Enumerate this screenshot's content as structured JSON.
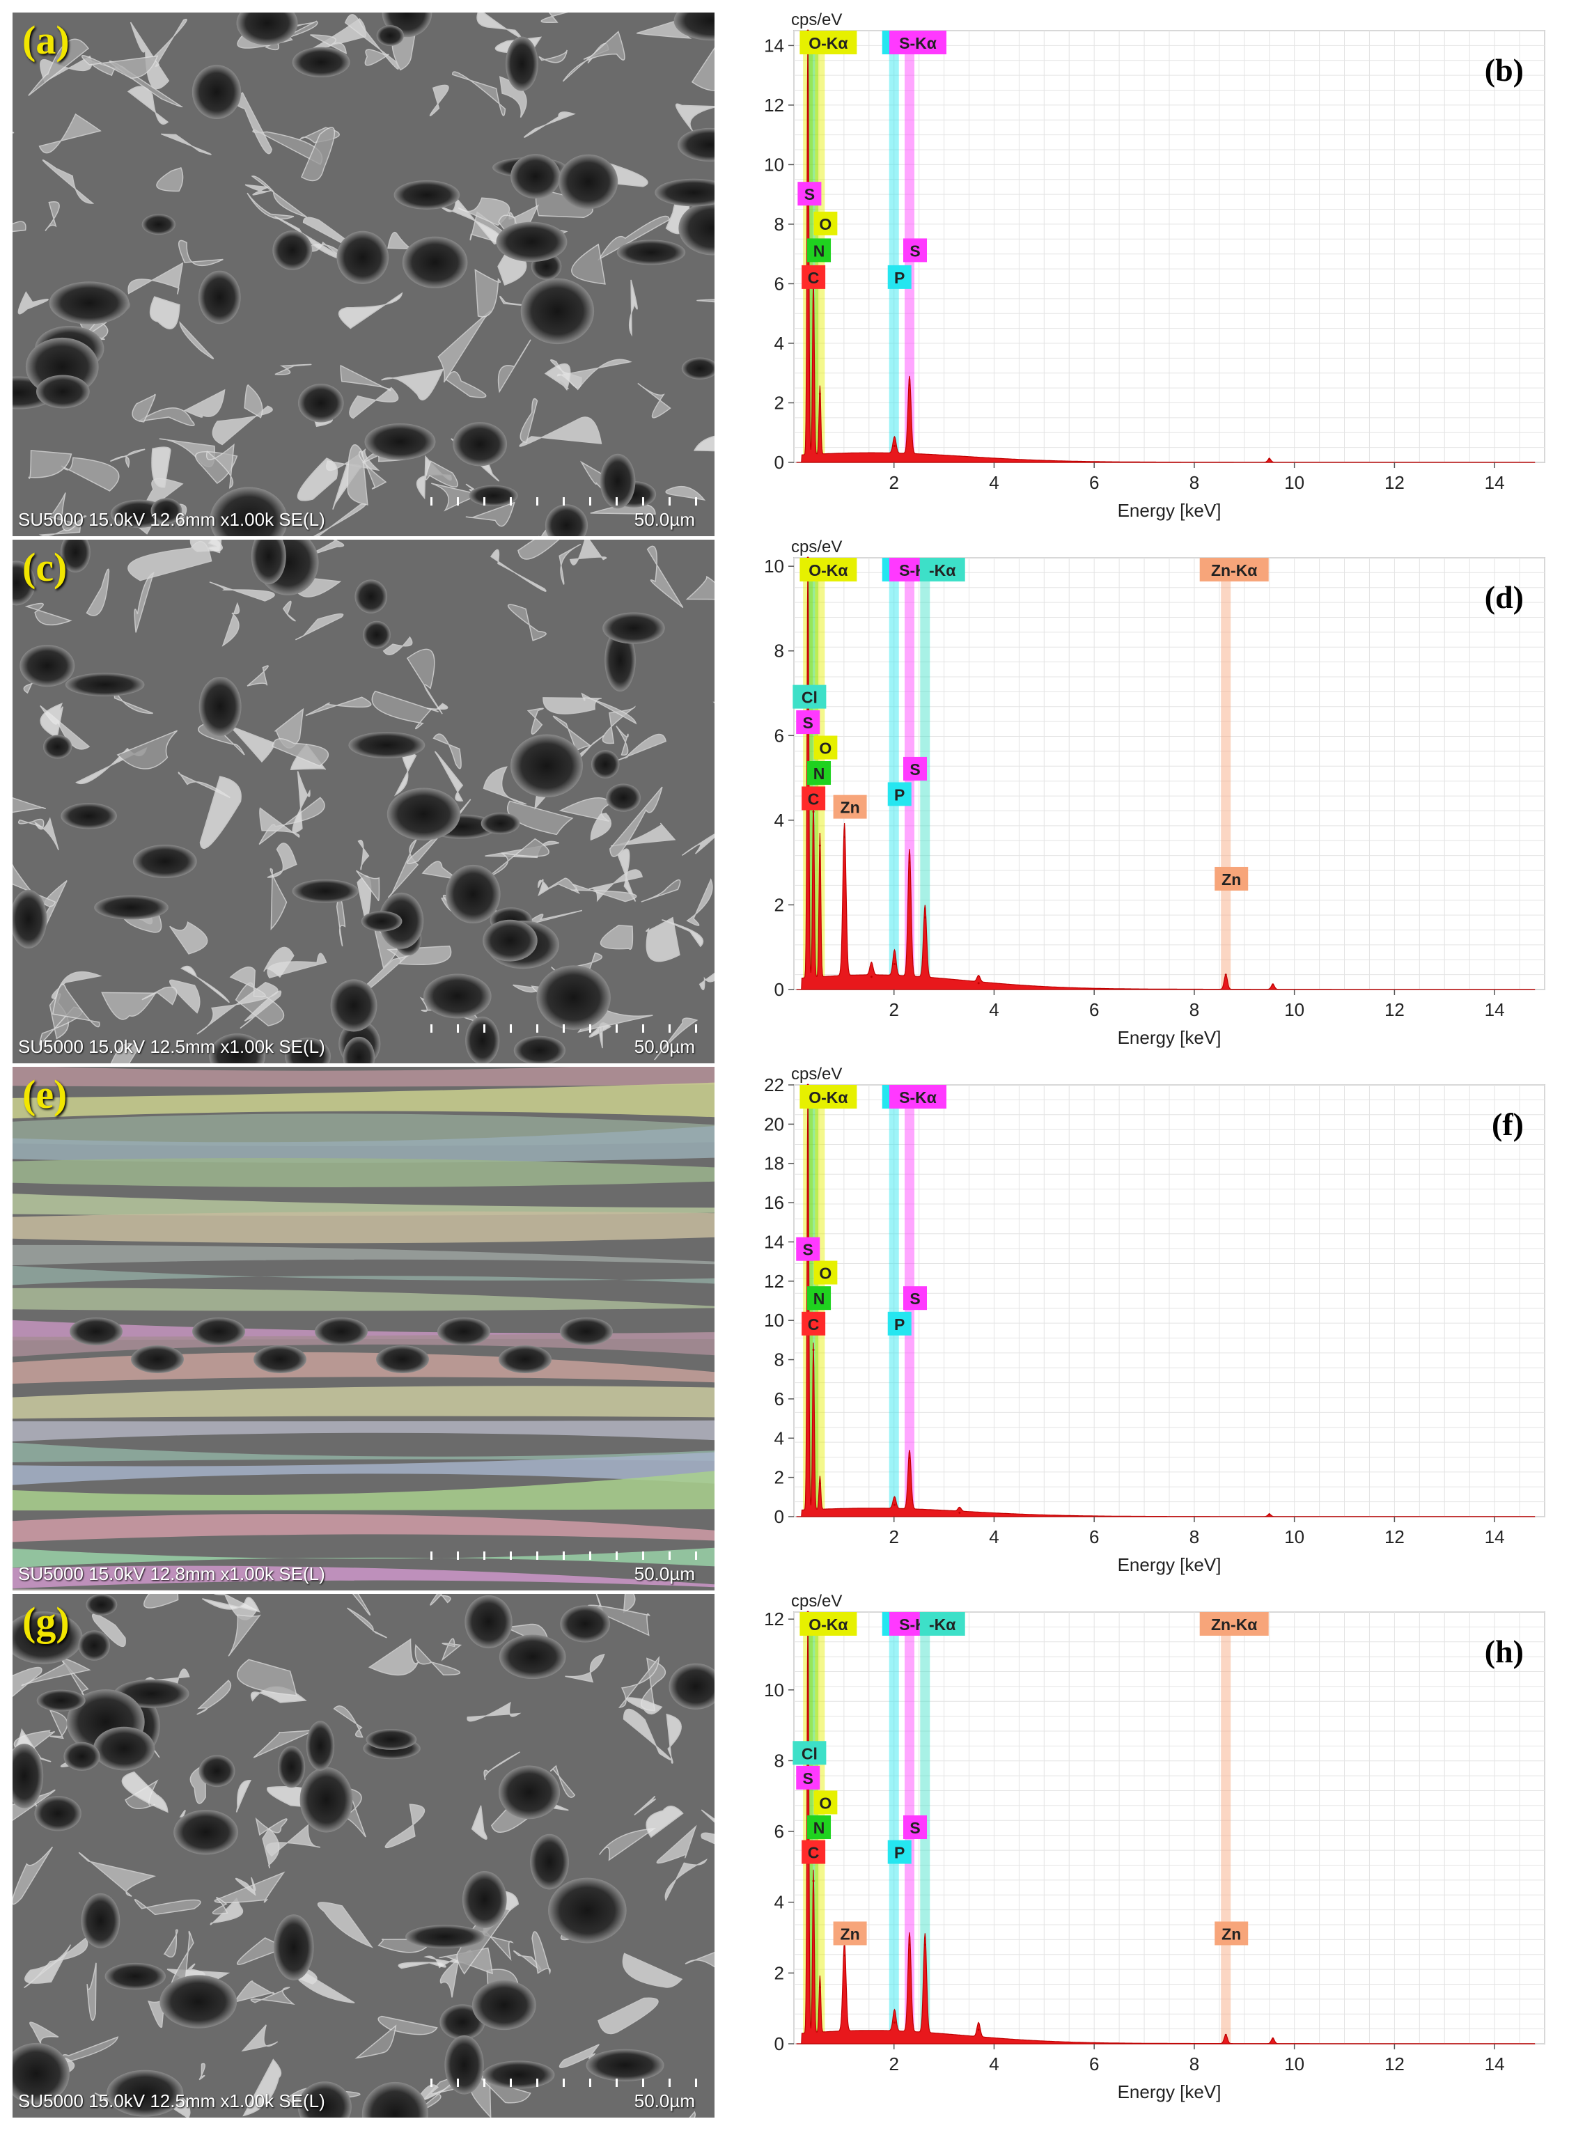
{
  "sem_panels": [
    {
      "label": "(a)",
      "info": "SU5000 15.0kV 12.6mm x1.00k SE(L)",
      "scale": "50.0µm"
    },
    {
      "label": "(c)",
      "info": "SU5000 15.0kV 12.5mm x1.00k SE(L)",
      "scale": "50.0µm"
    },
    {
      "label": "(e)",
      "info": "SU5000 15.0kV 12.8mm x1.00k SE(L)",
      "scale": "50.0µm"
    },
    {
      "label": "(g)",
      "info": "SU5000 15.0kV 12.5mm x1.00k SE(L)",
      "scale": "50.0µm"
    }
  ],
  "colors": {
    "spectrum_fill": "#e8181c",
    "C": "#ff2a2a",
    "N": "#1fd21f",
    "O": "#e6f000",
    "S": "#ff39ff",
    "P": "#25e6f0",
    "Cl": "#3de0c8",
    "Zn": "#f7a57a",
    "grid": "#e4e4e4"
  },
  "chart_data": [
    {
      "type": "area",
      "panel": "(b)",
      "ylabel": "cps/eV",
      "xlabel": "Energy [keV]",
      "xlim": [
        0,
        15
      ],
      "ylim": [
        0,
        14.5
      ],
      "xticks": [
        "2",
        "4",
        "6",
        "8",
        "10",
        "12",
        "14"
      ],
      "yticks": [
        "0",
        "2",
        "4",
        "6",
        "8",
        "10",
        "12",
        "14"
      ],
      "header_tags": [
        {
          "text": "O-Kα",
          "el": "O",
          "x": 0.52
        },
        {
          "text": "P",
          "el": "P",
          "x": 2.0
        },
        {
          "text": "S-Kα",
          "el": "S",
          "x": 2.31
        }
      ],
      "peak_tags": [
        {
          "text": "S",
          "el": "S",
          "x": 0.2,
          "y": 9.0
        },
        {
          "text": "O",
          "el": "O",
          "x": 0.52,
          "y": 8.0
        },
        {
          "text": "N",
          "el": "N",
          "x": 0.39,
          "y": 7.1
        },
        {
          "text": "C",
          "el": "C",
          "x": 0.28,
          "y": 6.2
        },
        {
          "text": "P",
          "el": "P",
          "x": 2.0,
          "y": 6.2
        },
        {
          "text": "S",
          "el": "S",
          "x": 2.31,
          "y": 7.1
        }
      ],
      "bands": [
        {
          "el": "O",
          "x": 0.28
        },
        {
          "el": "N",
          "x": 0.39
        },
        {
          "el": "O",
          "x": 0.52
        },
        {
          "el": "P",
          "x": 2.0
        },
        {
          "el": "S",
          "x": 2.31
        }
      ],
      "peaks": [
        {
          "x": 0.28,
          "y": 14.5
        },
        {
          "x": 0.39,
          "y": 6.0
        },
        {
          "x": 0.52,
          "y": 2.3
        },
        {
          "x": 2.01,
          "y": 0.55
        },
        {
          "x": 2.31,
          "y": 2.6
        },
        {
          "x": 9.5,
          "y": 0.12
        }
      ],
      "background": 0.3
    },
    {
      "type": "area",
      "panel": "(d)",
      "ylabel": "cps/eV",
      "xlabel": "Energy [keV]",
      "xlim": [
        0,
        15
      ],
      "ylim": [
        0,
        10.2
      ],
      "xticks": [
        "2",
        "4",
        "6",
        "8",
        "10",
        "12",
        "14"
      ],
      "yticks": [
        "0",
        "2",
        "4",
        "6",
        "8",
        "10"
      ],
      "header_tags": [
        {
          "text": "O-Kα",
          "el": "O",
          "x": 0.52
        },
        {
          "text": "P",
          "el": "P",
          "x": 2.0
        },
        {
          "text": "S-Kα",
          "el": "S",
          "x": 2.31
        },
        {
          "text": "-Kα",
          "el": "Cl",
          "x": 2.8
        },
        {
          "text": "Zn-Kα",
          "el": "Zn",
          "x": 8.63
        }
      ],
      "peak_tags": [
        {
          "text": "Cl",
          "el": "Cl",
          "x": 0.2,
          "y": 6.9
        },
        {
          "text": "S",
          "el": "S",
          "x": 0.17,
          "y": 6.3
        },
        {
          "text": "O",
          "el": "O",
          "x": 0.52,
          "y": 5.7
        },
        {
          "text": "N",
          "el": "N",
          "x": 0.39,
          "y": 5.1
        },
        {
          "text": "C",
          "el": "C",
          "x": 0.28,
          "y": 4.5
        },
        {
          "text": "Zn",
          "el": "Zn",
          "x": 1.01,
          "y": 4.3
        },
        {
          "text": "P",
          "el": "P",
          "x": 2.0,
          "y": 4.6
        },
        {
          "text": "S",
          "el": "S",
          "x": 2.31,
          "y": 5.2
        },
        {
          "text": "Zn",
          "el": "Zn",
          "x": 8.63,
          "y": 2.6
        }
      ],
      "bands": [
        {
          "el": "O",
          "x": 0.28
        },
        {
          "el": "N",
          "x": 0.39
        },
        {
          "el": "O",
          "x": 0.52
        },
        {
          "el": "P",
          "x": 2.0
        },
        {
          "el": "S",
          "x": 2.31
        },
        {
          "el": "Cl",
          "x": 2.62
        },
        {
          "el": "Zn",
          "x": 8.63
        }
      ],
      "peaks": [
        {
          "x": 0.28,
          "y": 10.2
        },
        {
          "x": 0.39,
          "y": 4.2
        },
        {
          "x": 0.52,
          "y": 3.4
        },
        {
          "x": 1.01,
          "y": 3.6
        },
        {
          "x": 1.55,
          "y": 0.3
        },
        {
          "x": 2.01,
          "y": 0.6
        },
        {
          "x": 2.31,
          "y": 3.0
        },
        {
          "x": 2.62,
          "y": 1.7
        },
        {
          "x": 3.69,
          "y": 0.15
        },
        {
          "x": 8.63,
          "y": 0.35
        },
        {
          "x": 9.57,
          "y": 0.12
        }
      ],
      "background": 0.32
    },
    {
      "type": "area",
      "panel": "(f)",
      "ylabel": "cps/eV",
      "xlabel": "Energy [keV]",
      "xlim": [
        0,
        15
      ],
      "ylim": [
        0,
        22
      ],
      "xticks": [
        "2",
        "4",
        "6",
        "8",
        "10",
        "12",
        "14"
      ],
      "yticks": [
        "0",
        "2",
        "4",
        "6",
        "8",
        "10",
        "12",
        "14",
        "16",
        "18",
        "20",
        "22"
      ],
      "header_tags": [
        {
          "text": "O-Kα",
          "el": "O",
          "x": 0.52
        },
        {
          "text": "P",
          "el": "P",
          "x": 2.0
        },
        {
          "text": "S-Kα",
          "el": "S",
          "x": 2.31
        }
      ],
      "peak_tags": [
        {
          "text": "S",
          "el": "S",
          "x": 0.17,
          "y": 13.6
        },
        {
          "text": "O",
          "el": "O",
          "x": 0.52,
          "y": 12.4
        },
        {
          "text": "N",
          "el": "N",
          "x": 0.39,
          "y": 11.1
        },
        {
          "text": "C",
          "el": "C",
          "x": 0.28,
          "y": 9.8
        },
        {
          "text": "P",
          "el": "P",
          "x": 2.0,
          "y": 9.8
        },
        {
          "text": "S",
          "el": "S",
          "x": 2.31,
          "y": 11.1
        }
      ],
      "bands": [
        {
          "el": "O",
          "x": 0.28
        },
        {
          "el": "N",
          "x": 0.39
        },
        {
          "el": "O",
          "x": 0.52
        },
        {
          "el": "P",
          "x": 2.0
        },
        {
          "el": "S",
          "x": 2.31
        }
      ],
      "peaks": [
        {
          "x": 0.28,
          "y": 22.0
        },
        {
          "x": 0.39,
          "y": 8.5
        },
        {
          "x": 0.52,
          "y": 1.7
        },
        {
          "x": 2.01,
          "y": 0.6
        },
        {
          "x": 2.31,
          "y": 3.0
        },
        {
          "x": 3.31,
          "y": 0.2
        },
        {
          "x": 9.5,
          "y": 0.12
        }
      ],
      "background": 0.4
    },
    {
      "type": "area",
      "panel": "(h)",
      "ylabel": "cps/eV",
      "xlabel": "Energy [keV]",
      "xlim": [
        0,
        15
      ],
      "ylim": [
        0,
        12.2
      ],
      "xticks": [
        "2",
        "4",
        "6",
        "8",
        "10",
        "12",
        "14"
      ],
      "yticks": [
        "0",
        "2",
        "4",
        "6",
        "8",
        "10",
        "12"
      ],
      "header_tags": [
        {
          "text": "O-Kα",
          "el": "O",
          "x": 0.52
        },
        {
          "text": "P",
          "el": "P",
          "x": 2.0
        },
        {
          "text": "S-Kα",
          "el": "S",
          "x": 2.31
        },
        {
          "text": "-Kα",
          "el": "Cl",
          "x": 2.8
        },
        {
          "text": "Zn-Kα",
          "el": "Zn",
          "x": 8.63
        }
      ],
      "peak_tags": [
        {
          "text": "Cl",
          "el": "Cl",
          "x": 0.2,
          "y": 8.2
        },
        {
          "text": "S",
          "el": "S",
          "x": 0.17,
          "y": 7.5
        },
        {
          "text": "O",
          "el": "O",
          "x": 0.52,
          "y": 6.8
        },
        {
          "text": "N",
          "el": "N",
          "x": 0.39,
          "y": 6.1
        },
        {
          "text": "C",
          "el": "C",
          "x": 0.28,
          "y": 5.4
        },
        {
          "text": "P",
          "el": "P",
          "x": 2.0,
          "y": 5.4
        },
        {
          "text": "S",
          "el": "S",
          "x": 2.31,
          "y": 6.1
        },
        {
          "text": "Zn",
          "el": "Zn",
          "x": 1.01,
          "y": 3.1
        },
        {
          "text": "Zn",
          "el": "Zn",
          "x": 8.63,
          "y": 3.1
        }
      ],
      "bands": [
        {
          "el": "O",
          "x": 0.28
        },
        {
          "el": "N",
          "x": 0.39
        },
        {
          "el": "O",
          "x": 0.52
        },
        {
          "el": "P",
          "x": 2.0
        },
        {
          "el": "S",
          "x": 2.31
        },
        {
          "el": "Cl",
          "x": 2.62
        },
        {
          "el": "Zn",
          "x": 8.63
        }
      ],
      "peaks": [
        {
          "x": 0.28,
          "y": 12.2
        },
        {
          "x": 0.39,
          "y": 4.6
        },
        {
          "x": 0.52,
          "y": 1.6
        },
        {
          "x": 1.01,
          "y": 2.5
        },
        {
          "x": 2.01,
          "y": 0.6
        },
        {
          "x": 2.31,
          "y": 2.8
        },
        {
          "x": 2.62,
          "y": 2.8
        },
        {
          "x": 3.69,
          "y": 0.4
        },
        {
          "x": 8.63,
          "y": 0.25
        },
        {
          "x": 9.57,
          "y": 0.15
        }
      ],
      "background": 0.35
    }
  ]
}
